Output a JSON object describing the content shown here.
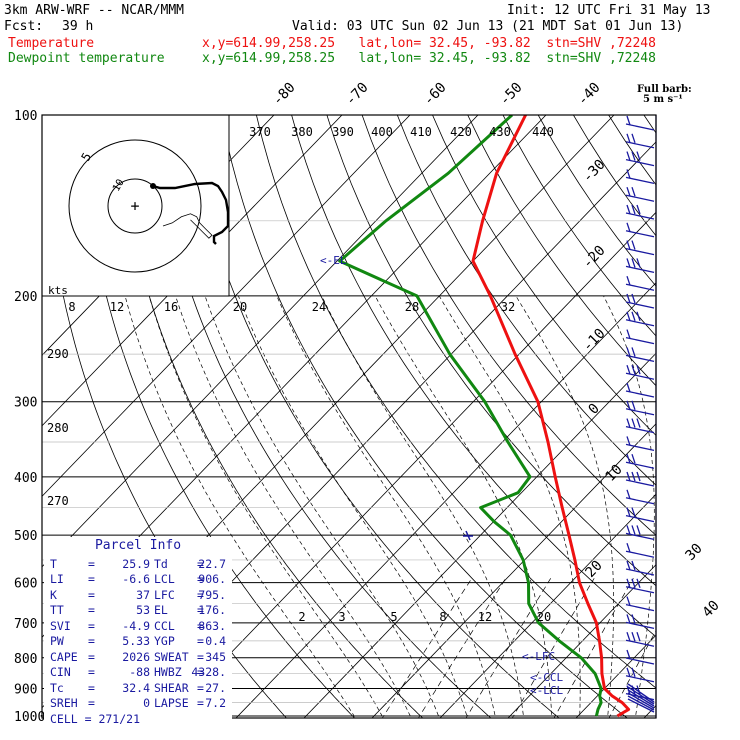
{
  "header": {
    "model": "3km ARW-WRF -- NCAR/MMM",
    "init": "Init: 12 UTC Fri 31 May 13",
    "fcst_label": "Fcst:",
    "fcst_value": "39 h",
    "valid": "Valid: 03 UTC Sun 02 Jun 13 (21 MDT Sat 01 Jun 13)",
    "temp_label": "Temperature",
    "temp_info": "x,y=614.99,258.25   lat,lon= 32.45, -93.82  stn=SHV ,72248",
    "dew_label": "Dewpoint temperature",
    "dew_info": "x,y=614.99,258.25   lat,lon= 32.45, -93.82  stn=SHV ,72248"
  },
  "colors": {
    "temperature": "#ee1111",
    "dewpoint": "#118811",
    "info_text": "#1a1aa0",
    "axes": "#000000"
  },
  "barb_header": {
    "line1": "Full barb:",
    "line2": "5 m s⁻¹"
  },
  "parcel": {
    "title": "Parcel Info",
    "rows": [
      [
        {
          "k": "T",
          "v": "25.9"
        },
        {
          "k": "Td",
          "v": "22.7"
        }
      ],
      [
        {
          "k": "LI",
          "v": "-6.6"
        },
        {
          "k": "LCL",
          "v": "906."
        }
      ],
      [
        {
          "k": "K",
          "v": "37"
        },
        {
          "k": "LFC",
          "v": "795."
        }
      ],
      [
        {
          "k": "TT",
          "v": "53"
        },
        {
          "k": "EL",
          "v": "176."
        }
      ],
      [
        {
          "k": "SVI",
          "v": "-4.9"
        },
        {
          "k": "CCL",
          "v": "863."
        }
      ],
      [
        {
          "k": "PW",
          "v": "5.33"
        },
        {
          "k": "YGP",
          "v": "0.4"
        }
      ],
      [
        {
          "k": "CAPE",
          "v": "2026"
        },
        {
          "k": "SWEAT",
          "v": "345"
        }
      ],
      [
        {
          "k": "CIN",
          "v": "-88"
        },
        {
          "k": "HWBZ",
          "v": "4328."
        }
      ],
      [
        {
          "k": "Tc",
          "v": "32.4"
        },
        {
          "k": "SHEAR",
          "v": "27."
        }
      ],
      [
        {
          "k": "SREH",
          "v": "0"
        },
        {
          "k": "LAPSE",
          "v": "7.2"
        }
      ]
    ],
    "cell": "CELL = 271/21"
  },
  "chart_data": {
    "type": "line",
    "subtype": "skew-T log-p sounding",
    "pressure_axis_hPa": [
      100,
      200,
      300,
      400,
      500,
      600,
      700,
      800,
      900,
      1000
    ],
    "pressure_range_hPa": [
      1000,
      100
    ],
    "isotherm_labels_C": [
      -80,
      -70,
      -60,
      -50,
      -40,
      -30,
      -20,
      -10,
      0,
      10,
      20,
      30,
      40
    ],
    "theta_labels_K": [
      370,
      380,
      390,
      400,
      410,
      420,
      430,
      440
    ],
    "theta_dry_labels_K": [
      290,
      280,
      270
    ],
    "mixing_ratio_labels_gkg": [
      "2",
      "3",
      "5",
      "8",
      "12",
      "20"
    ],
    "level_labels": [
      "EL",
      "LFC",
      "CCL",
      "LCL"
    ],
    "level_pressures_hPa": {
      "EL": 176,
      "LFC": 795,
      "CCL": 863,
      "LCL": 906
    },
    "series": [
      {
        "name": "Temperature",
        "pressure_hPa": [
          1000,
          975,
          950,
          925,
          900,
          850,
          800,
          750,
          700,
          650,
          600,
          550,
          500,
          450,
          400,
          350,
          300,
          250,
          200,
          175,
          150,
          125,
          100
        ],
        "temp_C": [
          25.8,
          26.5,
          24.6,
          22.1,
          20.0,
          17.5,
          15.2,
          12.5,
          9.5,
          5.5,
          1.3,
          -2.6,
          -7.0,
          -11.9,
          -17.3,
          -23.3,
          -30.5,
          -40.6,
          -52.5,
          -60.0,
          -64.3,
          -69.0,
          -73.0
        ]
      },
      {
        "name": "Dewpoint temperature",
        "pressure_hPa": [
          1000,
          975,
          950,
          925,
          900,
          850,
          800,
          750,
          700,
          650,
          600,
          550,
          500,
          475,
          450,
          425,
          400,
          350,
          300,
          250,
          200,
          175,
          150,
          125,
          100
        ],
        "temp_C": [
          22.7,
          22.0,
          21.5,
          20.3,
          19.5,
          16.5,
          12.2,
          6.6,
          1.0,
          -3.2,
          -6.2,
          -10.2,
          -15.6,
          -19.9,
          -23.9,
          -20.5,
          -21.0,
          -29.2,
          -38.3,
          -50.2,
          -63.3,
          -79.6,
          -78.5,
          -76.1,
          -75.0
        ]
      }
    ],
    "wind_barbs": "profile along right edge, speeds 5-27 m s⁻¹",
    "hodograph": {
      "ring_labels": [
        "5",
        "10"
      ],
      "trace_uv": [
        [
          0,
          0
        ],
        [
          3,
          1
        ],
        [
          6,
          3
        ],
        [
          9,
          4
        ],
        [
          11,
          3
        ],
        [
          12,
          1
        ],
        [
          14,
          -1
        ],
        [
          16,
          -3
        ],
        [
          15,
          -4
        ],
        [
          13,
          -2
        ],
        [
          11,
          0
        ],
        [
          9,
          2
        ],
        [
          4,
          8
        ],
        [
          1,
          12
        ],
        [
          3,
          22
        ],
        [
          9,
          24
        ],
        [
          12,
          28
        ],
        [
          18,
          28
        ],
        [
          23,
          28
        ]
      ]
    },
    "wind_table_kts": [
      "8",
      "12",
      "16",
      "20",
      "24",
      "28",
      "32"
    ],
    "xlabel_table": "kts"
  }
}
